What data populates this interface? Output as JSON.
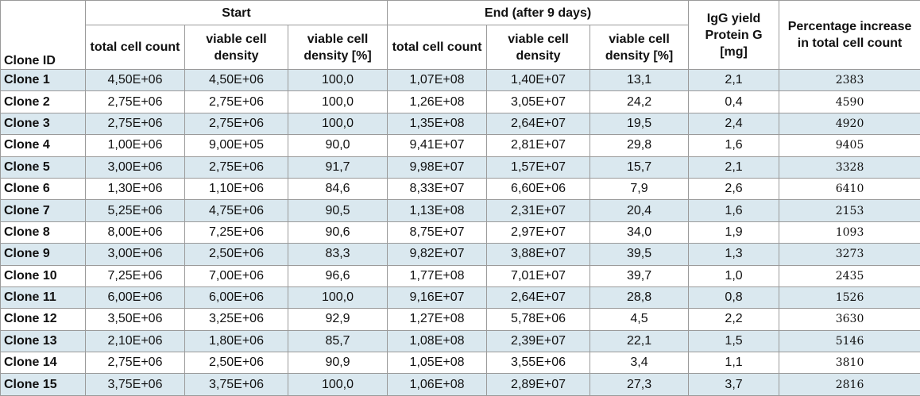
{
  "header": {
    "clone_id": "Clone ID",
    "start": "Start",
    "end": "End (after 9 days)",
    "igg": "IgG yield Protein G [mg]",
    "pct": "Percentage increase in total cell count",
    "sub": [
      "total cell count",
      "viable cell density",
      "viable cell density [%]",
      "total cell count",
      "viable cell density",
      "viable cell density [%]"
    ]
  },
  "rows": [
    [
      "Clone 1",
      "4,50E+06",
      "4,50E+06",
      "100,0",
      "1,07E+08",
      "1,40E+07",
      "13,1",
      "2,1",
      "2383"
    ],
    [
      "Clone 2",
      "2,75E+06",
      "2,75E+06",
      "100,0",
      "1,26E+08",
      "3,05E+07",
      "24,2",
      "0,4",
      "4590"
    ],
    [
      "Clone 3",
      "2,75E+06",
      "2,75E+06",
      "100,0",
      "1,35E+08",
      "2,64E+07",
      "19,5",
      "2,4",
      "4920"
    ],
    [
      "Clone 4",
      "1,00E+06",
      "9,00E+05",
      "90,0",
      "9,41E+07",
      "2,81E+07",
      "29,8",
      "1,6",
      "9405"
    ],
    [
      "Clone 5",
      "3,00E+06",
      "2,75E+06",
      "91,7",
      "9,98E+07",
      "1,57E+07",
      "15,7",
      "2,1",
      "3328"
    ],
    [
      "Clone 6",
      "1,30E+06",
      "1,10E+06",
      "84,6",
      "8,33E+07",
      "6,60E+06",
      "7,9",
      "2,6",
      "6410"
    ],
    [
      "Clone 7",
      "5,25E+06",
      "4,75E+06",
      "90,5",
      "1,13E+08",
      "2,31E+07",
      "20,4",
      "1,6",
      "2153"
    ],
    [
      "Clone 8",
      "8,00E+06",
      "7,25E+06",
      "90,6",
      "8,75E+07",
      "2,97E+07",
      "34,0",
      "1,9",
      "1093"
    ],
    [
      "Clone 9",
      "3,00E+06",
      "2,50E+06",
      "83,3",
      "9,82E+07",
      "3,88E+07",
      "39,5",
      "1,3",
      "3273"
    ],
    [
      "Clone 10",
      "7,25E+06",
      "7,00E+06",
      "96,6",
      "1,77E+08",
      "7,01E+07",
      "39,7",
      "1,0",
      "2435"
    ],
    [
      "Clone 11",
      "6,00E+06",
      "6,00E+06",
      "100,0",
      "9,16E+07",
      "2,64E+07",
      "28,8",
      "0,8",
      "1526"
    ],
    [
      "Clone 12",
      "3,50E+06",
      "3,25E+06",
      "92,9",
      "1,27E+08",
      "5,78E+06",
      "4,5",
      "2,2",
      "3630"
    ],
    [
      "Clone 13",
      "2,10E+06",
      "1,80E+06",
      "85,7",
      "1,08E+08",
      "2,39E+07",
      "22,1",
      "1,5",
      "5146"
    ],
    [
      "Clone 14",
      "2,75E+06",
      "2,50E+06",
      "90,9",
      "1,05E+08",
      "3,55E+06",
      "3,4",
      "1,1",
      "3810"
    ],
    [
      "Clone 15",
      "3,75E+06",
      "3,75E+06",
      "100,0",
      "1,06E+08",
      "2,89E+07",
      "27,3",
      "3,7",
      "2816"
    ]
  ]
}
